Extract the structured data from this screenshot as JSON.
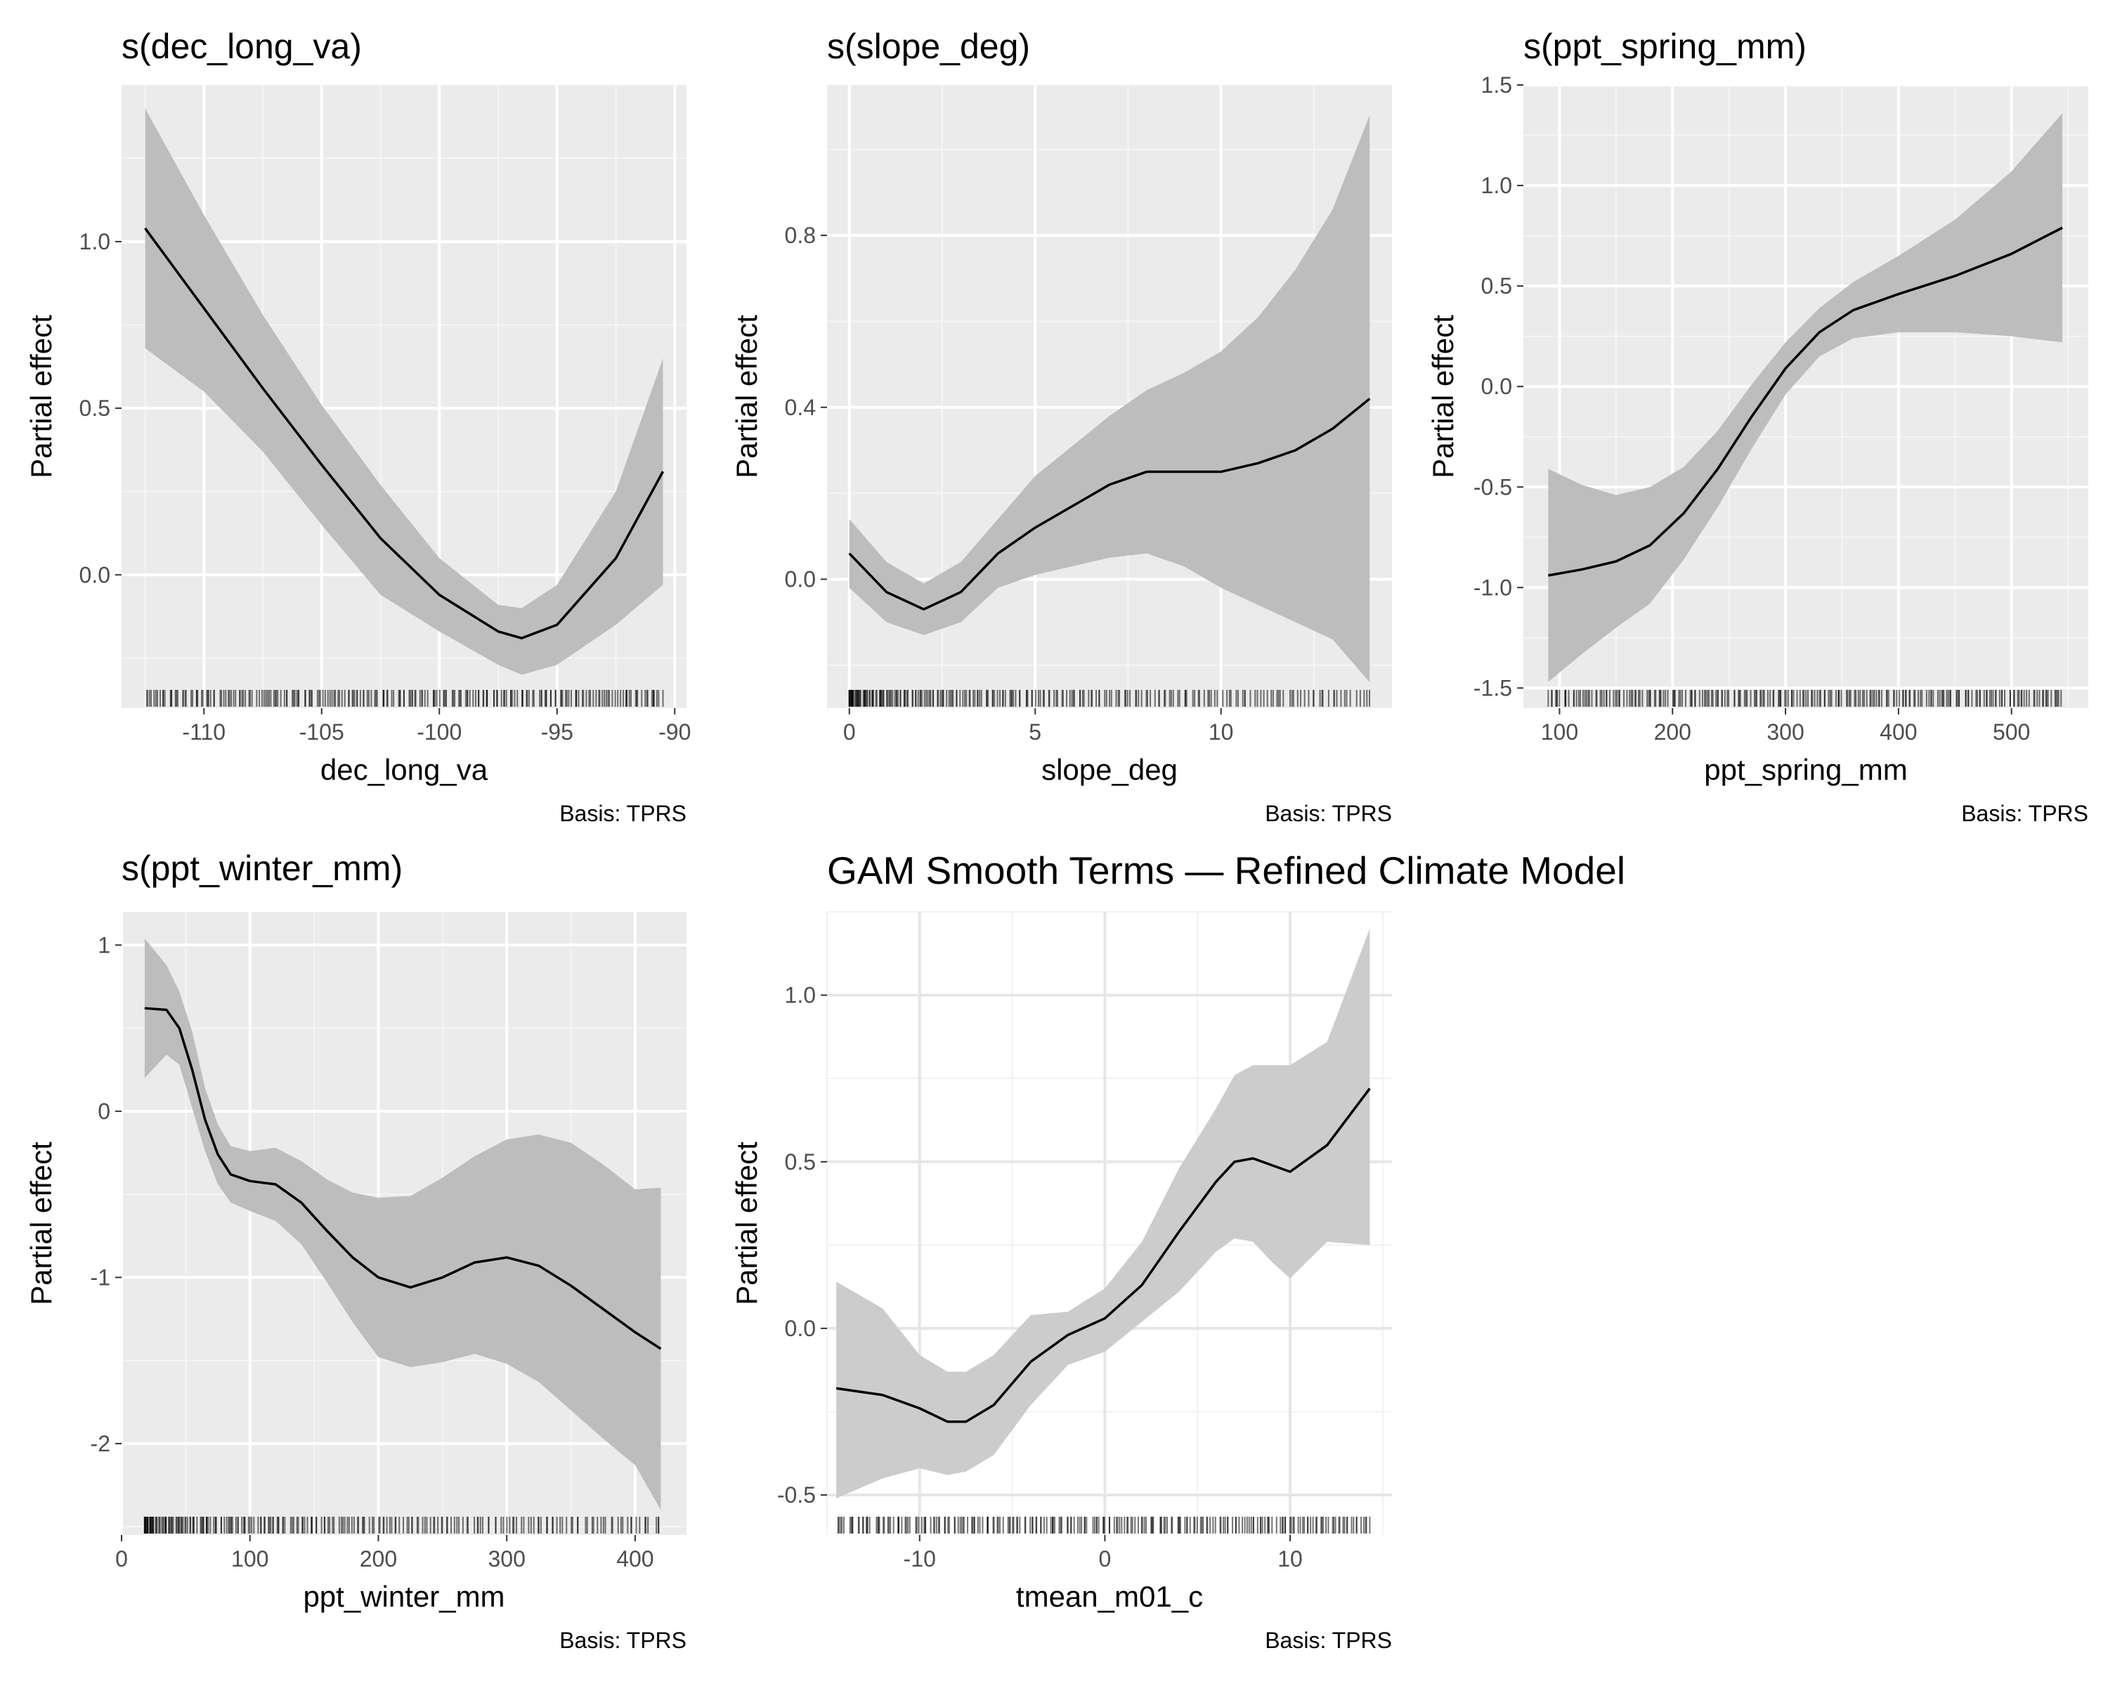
{
  "figure": {
    "title": "GAM Smooth Terms — Refined Climate Model"
  },
  "chart_data": [
    {
      "type": "line",
      "title": "s(dec_long_va)",
      "xlabel": "dec_long_va",
      "ylabel": "Partial effect",
      "caption": "Basis: TPRS",
      "xlim": [
        -113.5,
        -89.5
      ],
      "ylim": [
        -0.4,
        1.47
      ],
      "xticks": [
        -110,
        -105,
        -100,
        -95,
        -90
      ],
      "xtick_labels": [
        "-110",
        "-105",
        "-100",
        "-95",
        "-90"
      ],
      "yticks": [
        0.0,
        0.5,
        1.0
      ],
      "ytick_labels": [
        "0.0",
        "0.5",
        "1.0"
      ],
      "panel_style": "grey",
      "x": [
        -112.5,
        -110,
        -107.5,
        -105,
        -102.5,
        -100,
        -97.5,
        -96.5,
        -95,
        -92.5,
        -90.5
      ],
      "fit": [
        1.04,
        0.8,
        0.56,
        0.33,
        0.11,
        -0.06,
        -0.17,
        -0.19,
        -0.15,
        0.05,
        0.31
      ],
      "lower": [
        0.68,
        0.55,
        0.37,
        0.15,
        -0.06,
        -0.17,
        -0.27,
        -0.3,
        -0.27,
        -0.15,
        -0.03
      ],
      "upper": [
        1.4,
        1.08,
        0.78,
        0.51,
        0.27,
        0.05,
        -0.09,
        -0.1,
        -0.03,
        0.25,
        0.65
      ],
      "rug_range": [
        -112.5,
        -90.5
      ]
    },
    {
      "type": "line",
      "title": "s(slope_deg)",
      "xlabel": "slope_deg",
      "ylabel": "Partial effect",
      "caption": "Basis: TPRS",
      "xlim": [
        -0.6,
        14.6
      ],
      "ylim": [
        -0.3,
        1.15
      ],
      "xticks": [
        0,
        5,
        10
      ],
      "xtick_labels": [
        "0",
        "5",
        "10"
      ],
      "yticks": [
        0.0,
        0.4,
        0.8
      ],
      "ytick_labels": [
        "0.0",
        "0.4",
        "0.8"
      ],
      "panel_style": "grey",
      "x": [
        0,
        1,
        2,
        3,
        4,
        5,
        6,
        7,
        8,
        9,
        10,
        11,
        12,
        13,
        14
      ],
      "fit": [
        0.06,
        -0.03,
        -0.07,
        -0.03,
        0.06,
        0.12,
        0.17,
        0.22,
        0.25,
        0.25,
        0.25,
        0.27,
        0.3,
        0.35,
        0.42
      ],
      "lower": [
        -0.02,
        -0.1,
        -0.13,
        -0.1,
        -0.02,
        0.01,
        0.03,
        0.05,
        0.06,
        0.03,
        -0.02,
        -0.06,
        -0.1,
        -0.14,
        -0.24
      ],
      "upper": [
        0.14,
        0.04,
        -0.01,
        0.04,
        0.14,
        0.24,
        0.31,
        0.38,
        0.44,
        0.48,
        0.53,
        0.61,
        0.72,
        0.86,
        1.08
      ],
      "rug_range": [
        0,
        14
      ]
    },
    {
      "type": "line",
      "title": "s(ppt_spring_mm)",
      "xlabel": "ppt_spring_mm",
      "ylabel": "Partial effect",
      "caption": "Basis: TPRS",
      "xlim": [
        68,
        568
      ],
      "ylim": [
        -1.6,
        1.5
      ],
      "xticks": [
        100,
        200,
        300,
        400,
        500
      ],
      "xtick_labels": [
        "100",
        "200",
        "300",
        "400",
        "500"
      ],
      "yticks": [
        -1.5,
        -1.0,
        -0.5,
        0.0,
        0.5,
        1.0,
        1.5
      ],
      "ytick_labels": [
        "-1.5",
        "-1.0",
        "-0.5",
        "0.0",
        "0.5",
        "1.0",
        "1.5"
      ],
      "panel_style": "grey",
      "x": [
        90,
        120,
        150,
        180,
        210,
        240,
        270,
        300,
        330,
        360,
        400,
        450,
        500,
        545
      ],
      "fit": [
        -0.94,
        -0.91,
        -0.87,
        -0.79,
        -0.63,
        -0.41,
        -0.15,
        0.09,
        0.27,
        0.38,
        0.46,
        0.55,
        0.66,
        0.79
      ],
      "lower": [
        -1.47,
        -1.33,
        -1.2,
        -1.08,
        -0.86,
        -0.6,
        -0.31,
        -0.04,
        0.15,
        0.24,
        0.27,
        0.27,
        0.25,
        0.22
      ],
      "upper": [
        -0.41,
        -0.49,
        -0.54,
        -0.5,
        -0.4,
        -0.22,
        0.01,
        0.22,
        0.39,
        0.52,
        0.65,
        0.83,
        1.07,
        1.36
      ],
      "rug_range": [
        90,
        545
      ]
    },
    {
      "type": "line",
      "title": "s(ppt_winter_mm)",
      "xlabel": "ppt_winter_mm",
      "ylabel": "Partial effect",
      "caption": "Basis: TPRS",
      "xlim": [
        0,
        440
      ],
      "ylim": [
        -2.55,
        1.2
      ],
      "xticks": [
        0,
        100,
        200,
        300,
        400
      ],
      "xtick_labels": [
        "0",
        "100",
        "200",
        "300",
        "400"
      ],
      "yticks": [
        -2,
        -1,
        0,
        1
      ],
      "ytick_labels": [
        "-2",
        "-1",
        "0",
        "1"
      ],
      "panel_style": "grey",
      "x": [
        18,
        35,
        45,
        55,
        65,
        75,
        85,
        100,
        120,
        140,
        160,
        180,
        200,
        225,
        250,
        275,
        300,
        325,
        350,
        375,
        400,
        420
      ],
      "fit": [
        0.62,
        0.61,
        0.5,
        0.25,
        -0.05,
        -0.26,
        -0.38,
        -0.42,
        -0.44,
        -0.55,
        -0.72,
        -0.88,
        -1.0,
        -1.06,
        -1.0,
        -0.91,
        -0.88,
        -0.93,
        -1.05,
        -1.19,
        -1.33,
        -1.43
      ],
      "lower": [
        0.2,
        0.34,
        0.28,
        0.02,
        -0.24,
        -0.44,
        -0.55,
        -0.6,
        -0.66,
        -0.8,
        -1.03,
        -1.27,
        -1.48,
        -1.54,
        -1.51,
        -1.46,
        -1.52,
        -1.63,
        -1.8,
        -1.97,
        -2.13,
        -2.4
      ],
      "upper": [
        1.04,
        0.88,
        0.72,
        0.48,
        0.14,
        -0.08,
        -0.21,
        -0.24,
        -0.22,
        -0.3,
        -0.41,
        -0.49,
        -0.52,
        -0.51,
        -0.4,
        -0.27,
        -0.17,
        -0.14,
        -0.19,
        -0.32,
        -0.47,
        -0.46
      ],
      "rug_range": [
        18,
        420
      ]
    },
    {
      "type": "line",
      "title": "",
      "xlabel": "tmean_m01_c",
      "ylabel": "Partial effect",
      "caption": "Basis: TPRS",
      "xlim": [
        -15,
        15.5
      ],
      "ylim": [
        -0.62,
        1.25
      ],
      "xticks": [
        -10,
        0,
        10
      ],
      "xtick_labels": [
        "-10",
        "0",
        "10"
      ],
      "yticks": [
        -0.5,
        0.0,
        0.5,
        1.0
      ],
      "ytick_labels": [
        "-0.5",
        "0.0",
        "0.5",
        "1.0"
      ],
      "panel_style": "light",
      "x": [
        -14.5,
        -12,
        -10,
        -8.5,
        -7.5,
        -6,
        -4,
        -2,
        0,
        2,
        4,
        6,
        7,
        8,
        9,
        10,
        12,
        14.3
      ],
      "fit": [
        -0.18,
        -0.2,
        -0.24,
        -0.28,
        -0.28,
        -0.23,
        -0.1,
        -0.02,
        0.03,
        0.13,
        0.29,
        0.44,
        0.5,
        0.51,
        0.49,
        0.47,
        0.55,
        0.72
      ],
      "lower": [
        -0.51,
        -0.45,
        -0.42,
        -0.44,
        -0.43,
        -0.38,
        -0.23,
        -0.11,
        -0.07,
        0.02,
        0.11,
        0.23,
        0.27,
        0.26,
        0.2,
        0.15,
        0.26,
        0.25
      ],
      "upper": [
        0.14,
        0.06,
        -0.08,
        -0.13,
        -0.13,
        -0.08,
        0.04,
        0.05,
        0.12,
        0.26,
        0.48,
        0.66,
        0.76,
        0.79,
        0.79,
        0.79,
        0.86,
        1.2
      ],
      "rug_range": [
        -14.5,
        14.3
      ]
    }
  ]
}
